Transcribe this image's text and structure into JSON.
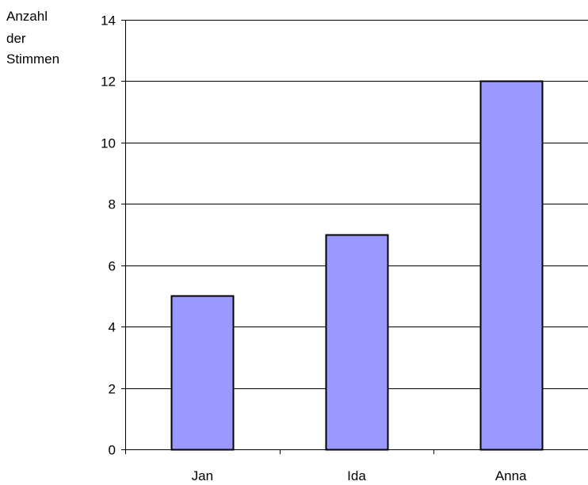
{
  "chart_data": {
    "type": "bar",
    "title": "",
    "xlabel": "",
    "ylabel_lines": [
      "Anzahl",
      "der",
      "Stimmen"
    ],
    "categories": [
      "Jan",
      "Ida",
      "Anna"
    ],
    "values": [
      5,
      7,
      12
    ],
    "ylim": [
      0,
      14
    ],
    "yticks": [
      0,
      2,
      4,
      6,
      8,
      10,
      12,
      14
    ],
    "grid": true,
    "legend": "none",
    "colors": {
      "bar_fill": "#9999ff",
      "bar_stroke": "#000000",
      "grid": "#000000",
      "axis": "#000000"
    }
  }
}
